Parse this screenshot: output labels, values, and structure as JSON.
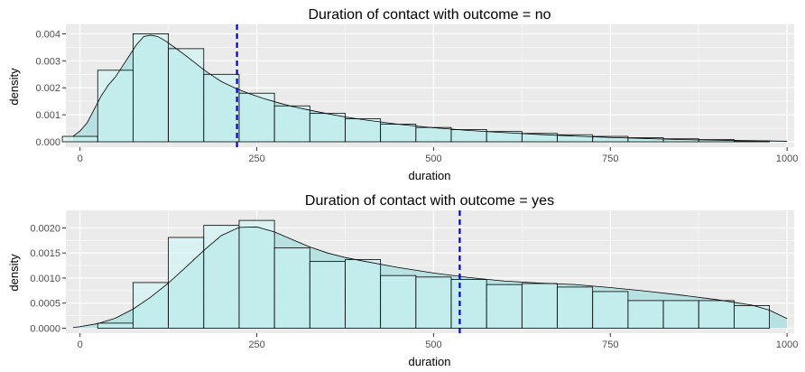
{
  "chart_data": [
    {
      "type": "bar",
      "title": "Duration of contact with outcome = no",
      "xlabel": "duration",
      "ylabel": "density",
      "xlim": [
        -20,
        1010
      ],
      "ylim": [
        -0.0002,
        0.00435
      ],
      "x_ticks": [
        0,
        250,
        500,
        750,
        1000
      ],
      "x_tick_labels": [
        "0",
        "250",
        "500",
        "750",
        "1000"
      ],
      "y_ticks": [
        0,
        0.001,
        0.002,
        0.003,
        0.004
      ],
      "y_tick_labels": [
        "0.000",
        "0.001",
        "0.002",
        "0.003",
        "0.004"
      ],
      "grid": true,
      "bin_width": 50,
      "bin_centers": [
        0,
        50,
        100,
        150,
        200,
        250,
        300,
        350,
        400,
        450,
        500,
        550,
        600,
        650,
        700,
        750,
        800,
        850,
        900,
        950
      ],
      "values": [
        0.0002,
        0.00265,
        0.004,
        0.00345,
        0.0025,
        0.0018,
        0.00133,
        0.00105,
        0.00085,
        0.00065,
        0.00053,
        0.00045,
        0.00038,
        0.00031,
        0.00026,
        0.0002,
        0.00015,
        0.00011,
        8e-05,
        3e-05
      ],
      "density_x": [
        -10,
        0,
        10,
        20,
        30,
        40,
        50,
        60,
        70,
        80,
        90,
        100,
        110,
        120,
        130,
        140,
        150,
        160,
        170,
        180,
        190,
        200,
        220,
        240,
        260,
        280,
        300,
        325,
        350,
        375,
        400,
        450,
        500,
        550,
        600,
        650,
        700,
        750,
        800,
        850,
        900,
        950,
        1000
      ],
      "density_y": [
        0.0002,
        0.0004,
        0.0007,
        0.0012,
        0.0017,
        0.0021,
        0.0024,
        0.0028,
        0.0032,
        0.0036,
        0.0039,
        0.00395,
        0.0039,
        0.00375,
        0.00357,
        0.00338,
        0.00318,
        0.00298,
        0.00277,
        0.00258,
        0.0024,
        0.00223,
        0.00198,
        0.00178,
        0.0016,
        0.00145,
        0.00131,
        0.00117,
        0.00104,
        0.00092,
        0.00082,
        0.00065,
        0.00052,
        0.00042,
        0.00034,
        0.00027,
        0.00021,
        0.00016,
        0.00012,
        8e-05,
        6e-05,
        4e-05,
        2e-05
      ],
      "mean_line_x": 222,
      "colors": {
        "fill": "#ccf5f5",
        "density_fill": "#b3e0e0",
        "mean_line": "#0000cc"
      }
    },
    {
      "type": "bar",
      "title": "Duration of contact with outcome = yes",
      "xlabel": "duration",
      "ylabel": "density",
      "xlim": [
        -20,
        1010
      ],
      "ylim": [
        -0.0001,
        0.00235
      ],
      "x_ticks": [
        0,
        250,
        500,
        750,
        1000
      ],
      "x_tick_labels": [
        "0",
        "250",
        "500",
        "750",
        "1000"
      ],
      "y_ticks": [
        0,
        0.0005,
        0.001,
        0.0015,
        0.002
      ],
      "y_tick_labels": [
        "0.0000",
        "0.0005",
        "0.0010",
        "0.0015",
        "0.0020"
      ],
      "grid": true,
      "bin_width": 50,
      "bin_centers": [
        50,
        100,
        150,
        200,
        250,
        300,
        350,
        400,
        450,
        500,
        550,
        600,
        650,
        700,
        750,
        800,
        850,
        900,
        950
      ],
      "values": [
        0.0001,
        0.00091,
        0.00181,
        0.00205,
        0.00215,
        0.0016,
        0.00133,
        0.00137,
        0.00105,
        0.00102,
        0.00097,
        0.00087,
        0.00089,
        0.00082,
        0.00073,
        0.00055,
        0.00055,
        0.00055,
        0.00045
      ],
      "density_x": [
        -10,
        0,
        25,
        50,
        75,
        100,
        125,
        150,
        175,
        200,
        225,
        250,
        275,
        300,
        325,
        350,
        375,
        400,
        450,
        500,
        550,
        600,
        650,
        700,
        750,
        800,
        850,
        900,
        950,
        975,
        1000
      ],
      "density_y": [
        1e-05,
        3e-05,
        9e-05,
        0.0002,
        0.00038,
        0.00062,
        0.0009,
        0.00122,
        0.00155,
        0.00185,
        0.00201,
        0.00202,
        0.00192,
        0.00177,
        0.00162,
        0.0015,
        0.00141,
        0.00134,
        0.00121,
        0.0011,
        0.00101,
        0.00094,
        0.0009,
        0.00087,
        0.00081,
        0.00074,
        0.00066,
        0.00057,
        0.00046,
        0.00036,
        0.00019
      ],
      "mean_line_x": 537,
      "colors": {
        "fill": "#ccf5f5",
        "density_fill": "#b3e0e0",
        "mean_line": "#0000cc"
      }
    }
  ]
}
